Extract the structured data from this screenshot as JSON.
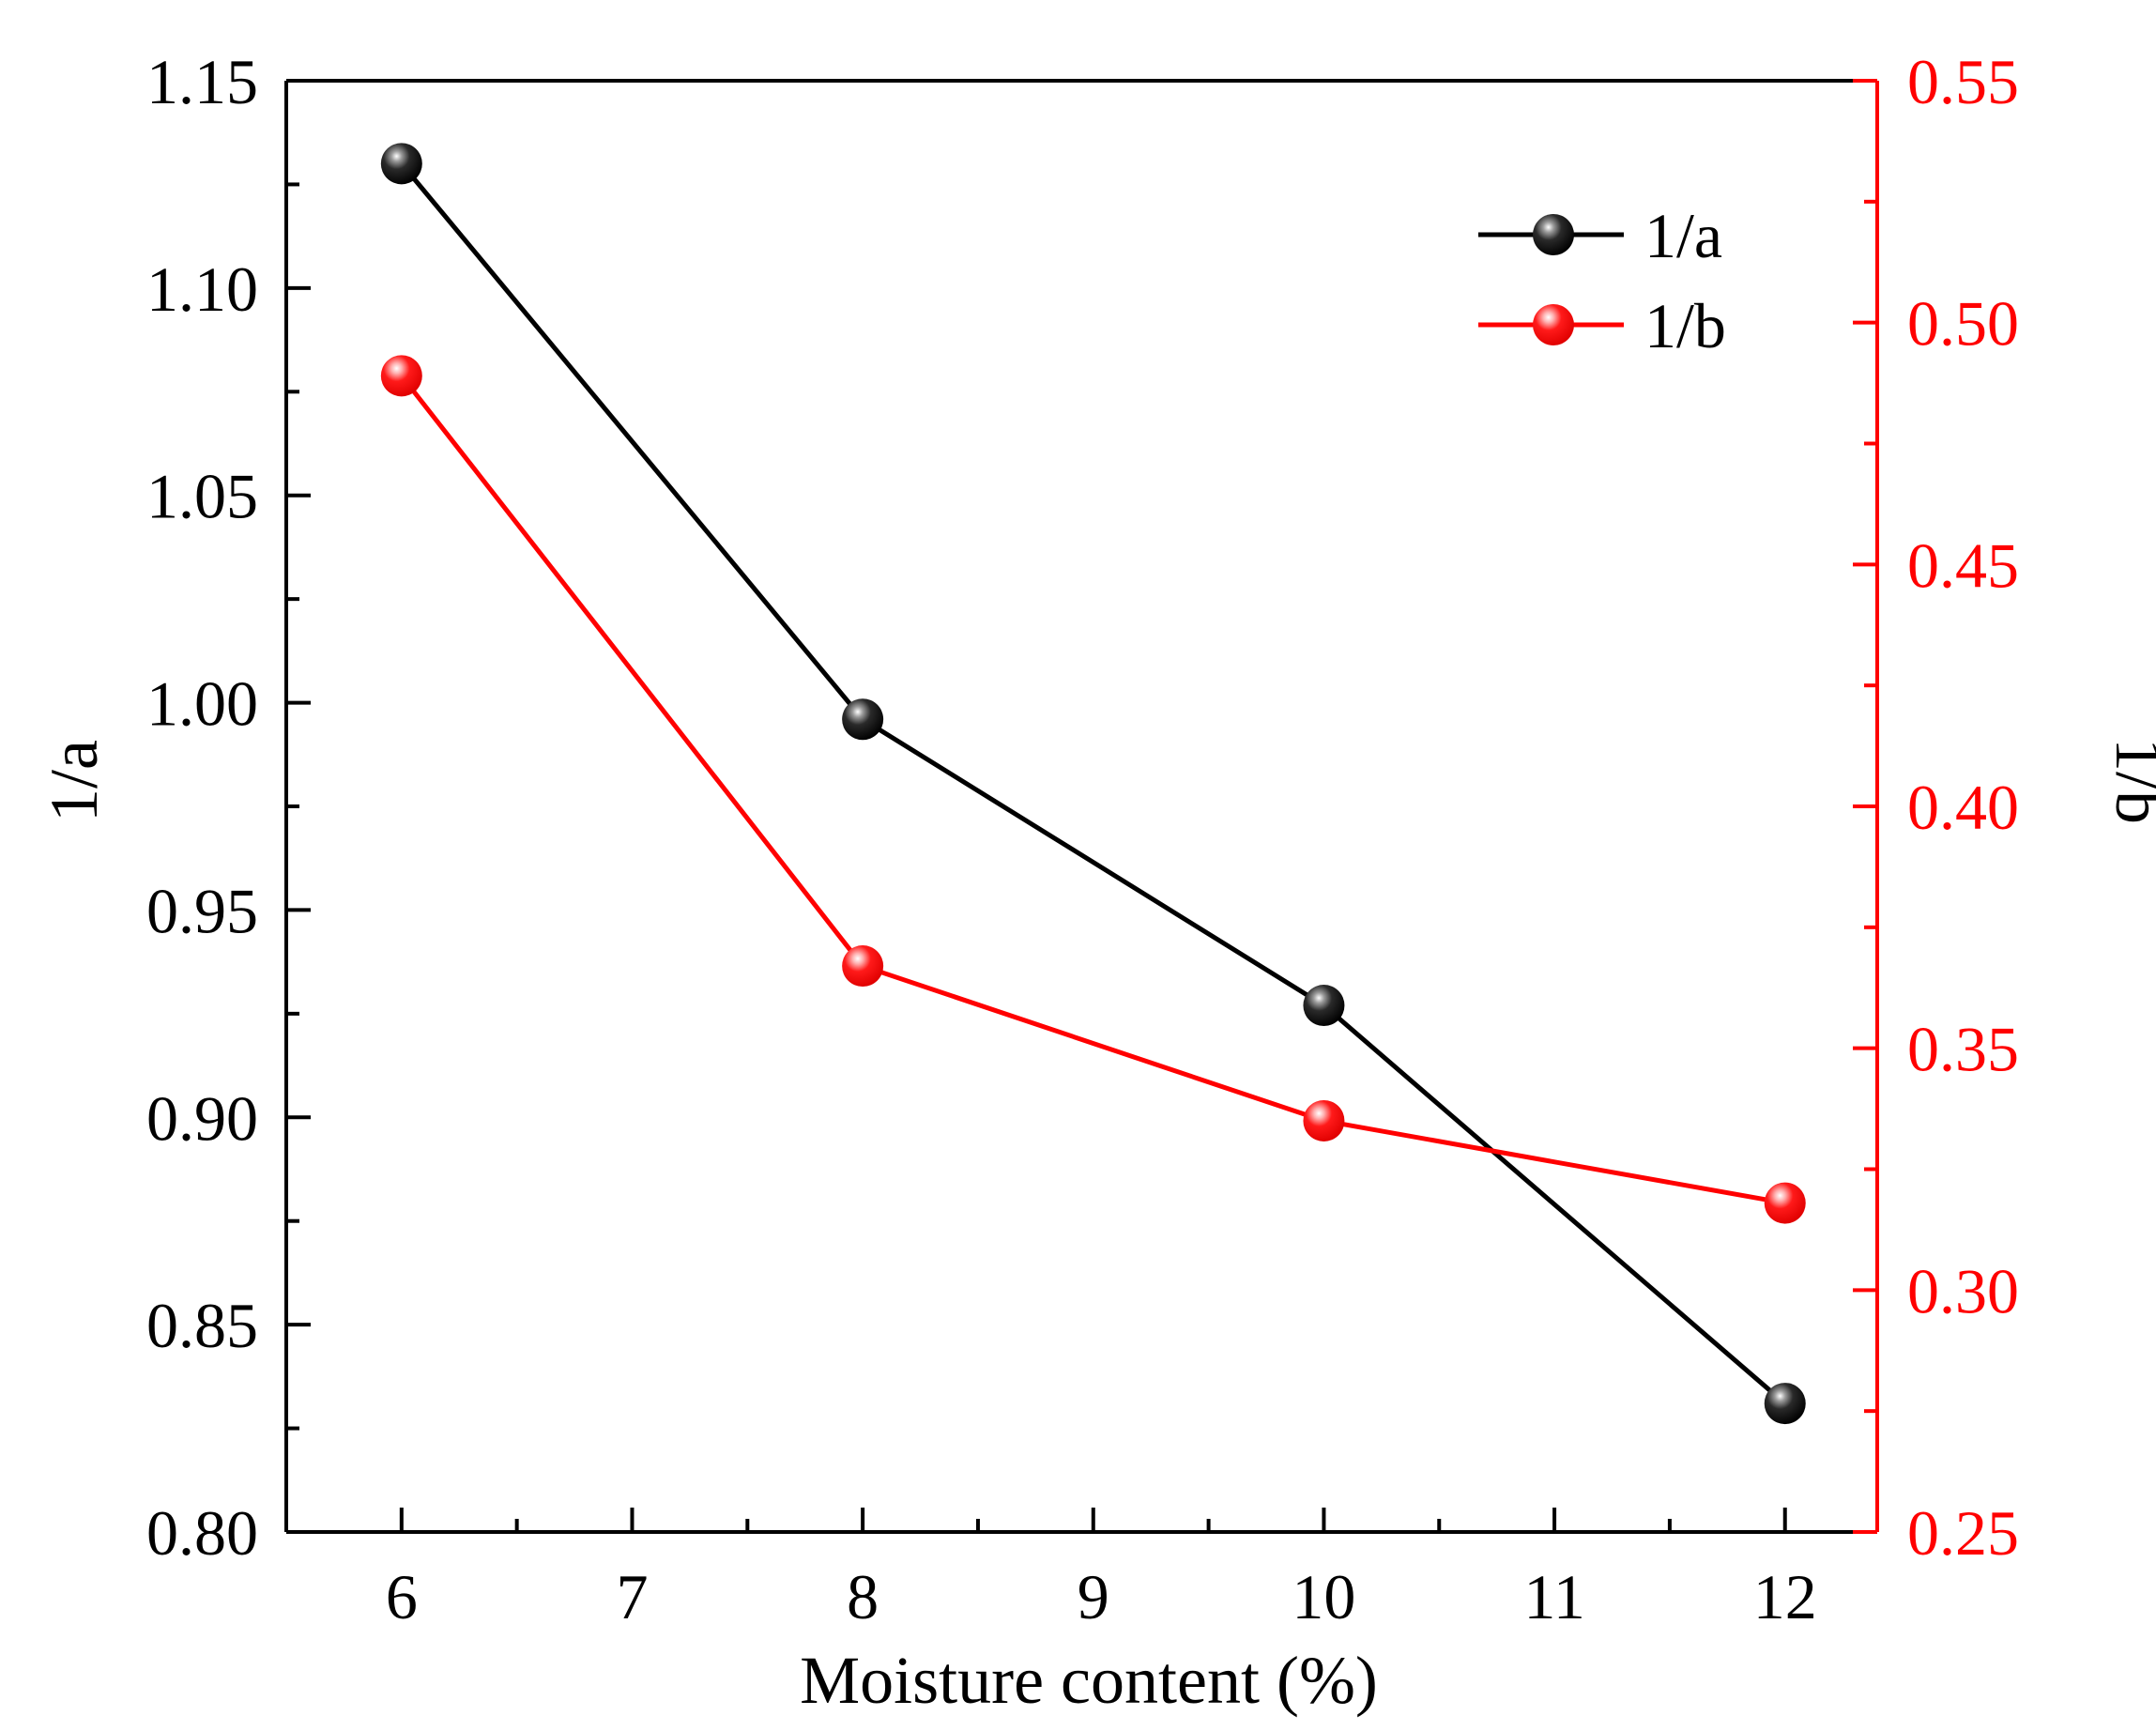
{
  "chart_data": {
    "type": "line",
    "title": "",
    "xlabel": "Moisture content (%)",
    "ylabel": "1/a",
    "ylabel_right": "1/b",
    "x": [
      6,
      8,
      10,
      12
    ],
    "xlim": [
      5.5,
      12.4
    ],
    "ylim": [
      0.8,
      1.15
    ],
    "ylim_right": [
      0.25,
      0.55
    ],
    "x_ticks": [
      "6",
      "7",
      "8",
      "9",
      "10",
      "11",
      "12"
    ],
    "y_ticks": [
      "0.80",
      "0.85",
      "0.90",
      "0.95",
      "1.00",
      "1.05",
      "1.10",
      "1.15"
    ],
    "y_ticks_right": [
      "0.25",
      "0.30",
      "0.35",
      "0.40",
      "0.45",
      "0.50",
      "0.55"
    ],
    "grid": false,
    "legend_position": "top-right",
    "series": [
      {
        "name": "1/a",
        "axis": "left",
        "color": "#000000",
        "values": [
          1.13,
          0.996,
          0.927,
          0.831
        ]
      },
      {
        "name": "1/b",
        "axis": "right",
        "color": "#ff0000",
        "values": [
          0.489,
          0.367,
          0.335,
          0.318
        ]
      }
    ]
  }
}
